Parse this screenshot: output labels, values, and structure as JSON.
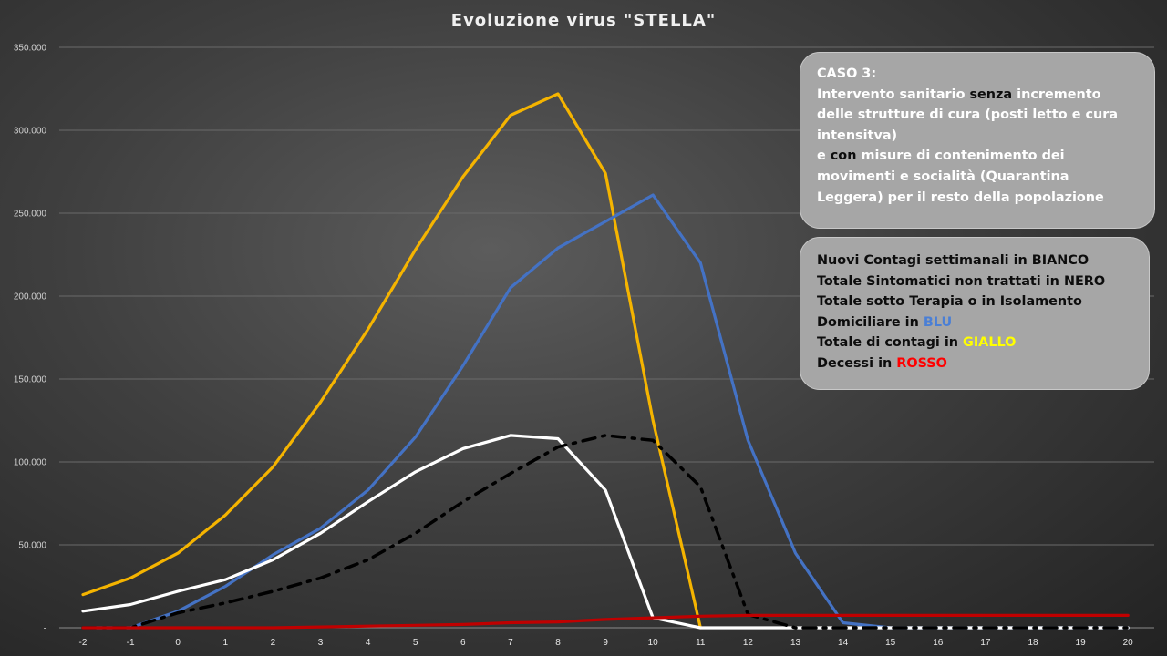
{
  "chart_data": {
    "type": "line",
    "title": "Evoluzione  virus \"STELLA\"",
    "x": [
      -2,
      -1,
      0,
      1,
      2,
      3,
      4,
      5,
      6,
      7,
      8,
      9,
      10,
      11,
      12,
      13,
      14,
      15,
      16,
      17,
      18,
      19,
      20
    ],
    "ylim": [
      0,
      350000
    ],
    "y_ticks": [
      "-",
      "50.000",
      "100.000",
      "150.000",
      "200.000",
      "250.000",
      "300.000",
      "350.000"
    ],
    "grid": true,
    "series": [
      {
        "color": "#f5b400",
        "style": "solid",
        "values": [
          20000,
          30000,
          45000,
          68000,
          97000,
          136000,
          180000,
          228000,
          272000,
          309000,
          322000,
          274000,
          125000,
          0,
          null,
          null,
          null,
          null,
          null,
          null,
          null,
          null,
          null
        ]
      },
      {
        "color": "#4472c4",
        "style": "solid",
        "values": [
          0,
          0,
          10000,
          25000,
          44000,
          60000,
          83000,
          115000,
          158000,
          205000,
          229000,
          245000,
          261000,
          220000,
          113000,
          45000,
          3000,
          0,
          0,
          0,
          0,
          0,
          0
        ]
      },
      {
        "color": "#ffffff",
        "style": "solid",
        "values": [
          10000,
          14000,
          22000,
          29000,
          41000,
          57000,
          76000,
          94000,
          108000,
          116000,
          114000,
          83000,
          6000,
          0,
          0,
          0,
          0,
          0,
          0,
          0,
          0,
          0,
          0
        ]
      },
      {
        "color": "#000000",
        "style": "dashdot",
        "values": [
          0,
          0,
          9000,
          15000,
          22000,
          30000,
          41000,
          57000,
          76000,
          93000,
          109000,
          116000,
          113000,
          85000,
          8000,
          0,
          0,
          0,
          0,
          0,
          0,
          0,
          0
        ]
      },
      {
        "color": "#c00000",
        "style": "solid",
        "values": [
          0,
          0,
          0,
          0,
          0,
          500,
          1000,
          1500,
          2000,
          3000,
          3500,
          5000,
          6000,
          7000,
          7500,
          7500,
          7500,
          7500,
          7500,
          7500,
          7500,
          7500,
          7500
        ]
      }
    ]
  },
  "notes": {
    "case": {
      "title": "CASO 3:",
      "l1a": "Intervento sanitario ",
      "l1kw": "senza",
      "l1b": " incremento delle strutture  di cura (posti letto e cura intensitva)",
      "l2a": "e ",
      "l2kw": "con",
      "l2b": " misure di contenimento dei  movimenti e socialità (Quarantina Leggera) per il resto della popolazione"
    },
    "legend": {
      "l1a": "Nuovi Contagi settimanali in ",
      "l1c": "BIANCO",
      "l2a": "Totale Sintomatici non trattati in ",
      "l2c": "NERO",
      "l3a": "Totale sotto Terapia o in Isolamento Domiciliare in ",
      "l3c": "BLU",
      "l4a": "Totale di contagi  in ",
      "l4c": "GIALLO",
      "l5a": "Decessi in ",
      "l5c": "ROSSO"
    }
  }
}
